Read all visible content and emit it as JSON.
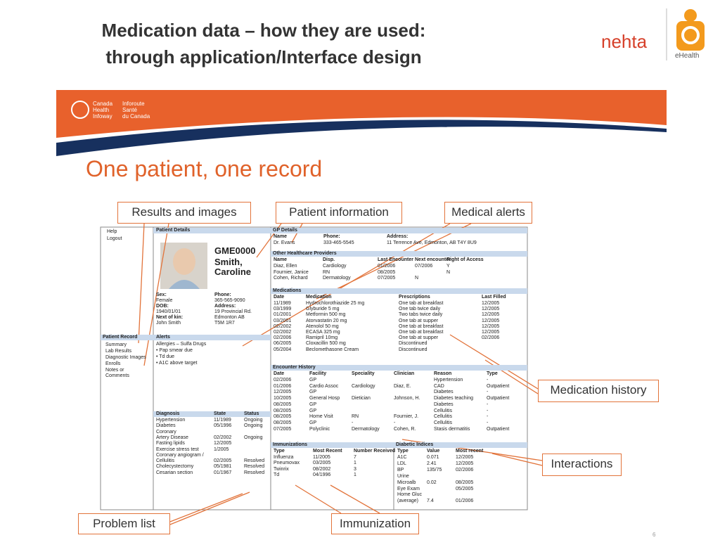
{
  "header": {
    "title_lines": [
      "Medication data – how they are used:",
      "through application/Interface design"
    ]
  },
  "logo": {
    "brand": "nehta",
    "sub": "eHealth"
  },
  "banner": {
    "org_en": [
      "Canada",
      "Health",
      "Infoway"
    ],
    "org_fr": [
      "Inforoute",
      "Santé",
      "du Canada"
    ]
  },
  "slide_heading": "One patient, one record",
  "callouts": {
    "results": "Results and images",
    "patient": "Patient information",
    "alerts": "Medical alerts",
    "medhist": "Medication history",
    "interactions": "Interactions",
    "problem": "Problem list",
    "immunization": "Immunization"
  },
  "ehr": {
    "nav_top": [
      "Help",
      "Logout"
    ],
    "nav_record": {
      "title": "Patient Record",
      "items": [
        "Summary",
        "Lab Results",
        "Diagnostic Images",
        "Enrolls",
        "Notes or Comments"
      ]
    },
    "patient": {
      "title": "Patient Details",
      "id": "GME0000",
      "name": "Smith, Caroline",
      "fields_left": [
        {
          "label": "Sex:",
          "lines": [
            "Female"
          ]
        },
        {
          "label": "DOB:",
          "lines": [
            "1940/01/01"
          ]
        },
        {
          "label": "Next of kin:",
          "lines": [
            "John Smith"
          ]
        }
      ],
      "fields_right": [
        {
          "label": "Phone:",
          "lines": [
            "365-565-9090"
          ]
        },
        {
          "label": "Address:",
          "lines": [
            "19 Provincial Rd.",
            "Edmonton AB",
            "T5M 1R7"
          ]
        }
      ]
    },
    "alerts": {
      "title": "Alerts",
      "items": [
        "Allergies – Sulfa Drugs",
        "• Pap smear due",
        "• Td due",
        "• A1C above target"
      ]
    },
    "diagnosis": {
      "headers": [
        "Diagnosis",
        "State",
        "Status"
      ],
      "rows": [
        [
          "Hypertension",
          "11/1989",
          "Ongoing"
        ],
        [
          "Diabetes",
          "05/1996",
          "Ongoing"
        ],
        [
          "Coronary",
          null,
          null
        ],
        [
          "Artery Disease",
          "02/2002",
          "Ongoing"
        ],
        [
          "Fasting lipids",
          "12/2005",
          null
        ],
        [
          "Exercise stress test",
          "1/2005",
          null
        ],
        [
          "Coronary angiogram /",
          null,
          null
        ],
        [
          "Cellulitis",
          "02/2005",
          "Resolved"
        ],
        [
          "Cholecystectomy",
          "05/1981",
          "Resolved"
        ],
        [
          "Cesarian section",
          "01/1967",
          "Resolved"
        ]
      ]
    },
    "gp": {
      "title": "GP Details",
      "headers": [
        "Name",
        "Phone:",
        "Address:"
      ],
      "rows": [
        [
          "Dr. Evans",
          "333-465-5545",
          "11 Terrence Ave, Edmonton, AB T4Y 8U9"
        ]
      ]
    },
    "providers": {
      "title": "Other Healthcare Providers",
      "headers": [
        "Name",
        "Disp.",
        "Last Encounter",
        "Next encounter",
        "Right of Access"
      ],
      "rows": [
        [
          "Diaz, Ellen",
          "Cardiology",
          "01/2006",
          "07/2006",
          "Y"
        ],
        [
          "Fournier, Janice",
          "RN",
          "08/2005",
          null,
          "N"
        ],
        [
          "Cohen, Richard",
          "Dermatology",
          "07/2005",
          "N",
          null
        ]
      ]
    },
    "medications": {
      "title": "Medications",
      "headers": [
        "Date",
        "Medication",
        "Prescriptions",
        "Last Filled"
      ],
      "rows": [
        [
          "11/1989",
          "Hydrochlorothiazide 25 mg",
          "One tab at breakfast",
          "12/2005"
        ],
        [
          "03/1999",
          "Glyburide 5 mg",
          "One tab twice daily",
          "12/2005"
        ],
        [
          "01/2001",
          "Metformin 500 mg",
          "Two tabs twice daily",
          "12/2005"
        ],
        [
          "03/2001",
          "Atorvastatin 20 mg",
          "One tab at supper",
          "12/2005"
        ],
        [
          "02/2002",
          "Atenolol 50 mg",
          "One tab at breakfast",
          "12/2005"
        ],
        [
          "02/2002",
          "ECASA 325 mg",
          "One tab at breakfast",
          "12/2005"
        ],
        [
          "02/2006",
          "Ramipril 10mg",
          "One tab at supper",
          "02/2006"
        ],
        [
          "06/2005",
          "Cloxacillin 500 mg",
          "Discontinued",
          null
        ],
        [
          "05/2004",
          "Beclomethasone Cream",
          "Discontinued",
          null
        ]
      ]
    },
    "encounters": {
      "title": "Encounter History",
      "headers": [
        "Date",
        "Facility",
        "Speciality",
        "Clinician",
        "Reason",
        "Type"
      ],
      "rows": [
        [
          "02/2006",
          "GP",
          null,
          null,
          "Hypertension",
          "-"
        ],
        [
          "01/2006",
          "Cardio Assoc",
          "Cardiology",
          "Diaz, E.",
          "CAD",
          "Outpatient"
        ],
        [
          "12/2005",
          "GP",
          null,
          null,
          "Diabetes",
          "-"
        ],
        [
          "10/2005",
          "General Hosp",
          "Dietician",
          "Johnson, H.",
          "Diabetes teaching",
          "Outpatient"
        ],
        [
          "08/2005",
          "GP",
          null,
          null,
          "Diabetes",
          "-"
        ],
        [
          "08/2005",
          "GP",
          null,
          null,
          "Cellulitis",
          "-"
        ],
        [
          "08/2005",
          "Home Visit",
          "RN",
          "Fournier, J.",
          "Cellulitis",
          "-"
        ],
        [
          "08/2005",
          "GP",
          "-",
          "-",
          "Cellulitis",
          "-"
        ],
        [
          "07/2005",
          "Polyclinic",
          "Dermatology",
          "Cohen, R.",
          "Stasis dermatitis",
          "Outpatient"
        ]
      ]
    },
    "immunizations": {
      "title": "Immunizations",
      "headers": [
        "Type",
        "Most Recent",
        "Number Received"
      ],
      "rows": [
        [
          "Influenza",
          "11/2005",
          "7"
        ],
        [
          "Pneumovax",
          "03/2005",
          "1"
        ],
        [
          "Twinrix",
          "08/2002",
          "3"
        ],
        [
          "Td",
          "04/1996",
          "1"
        ]
      ]
    },
    "diabetic": {
      "title": "Diabetic Indices",
      "headers": [
        "Type",
        "Value",
        "Most recent"
      ],
      "rows": [
        [
          "A1C",
          "0.071",
          "12/2005"
        ],
        [
          "LDL",
          "2.41",
          "12/2005"
        ],
        [
          "BP",
          "135/75",
          "02/2006"
        ],
        [
          "Urine",
          null,
          null
        ],
        [
          "Microalb",
          "0.02",
          "08/2005"
        ],
        [
          "Eye Exam",
          null,
          "05/2005"
        ],
        [
          "Home Gluc",
          null,
          null
        ],
        [
          "(average)",
          "7.4",
          "01/2006"
        ]
      ]
    }
  },
  "page_number": "6"
}
